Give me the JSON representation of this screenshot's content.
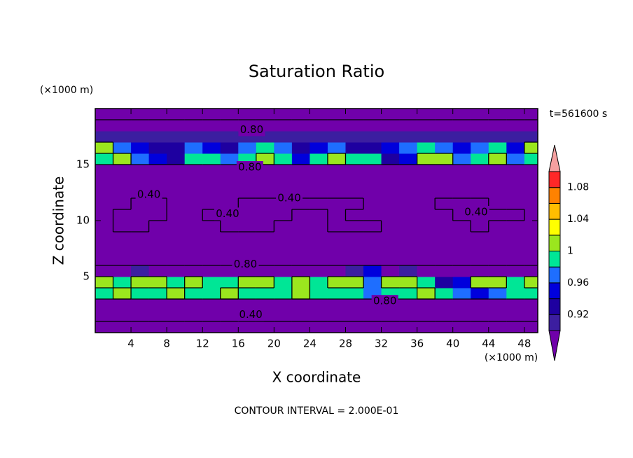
{
  "chart_data": {
    "type": "contour",
    "title": "Saturation Ratio",
    "xlabel": "X coordinate",
    "ylabel": "Z coordinate",
    "x_unit": "(×1000 m)",
    "y_unit": "(×1000 m)",
    "time_label": "t=561600 s",
    "footer": "CONTOUR INTERVAL = 2.000E-01",
    "xlim": [
      0,
      49.5
    ],
    "ylim": [
      0,
      20
    ],
    "xticks": [
      4,
      8,
      12,
      16,
      20,
      24,
      28,
      32,
      36,
      40,
      44,
      48
    ],
    "yticks": [
      5,
      10,
      15
    ],
    "x": [
      1,
      3,
      5,
      7,
      9,
      11,
      13,
      15,
      17,
      19,
      21,
      23,
      25,
      27,
      29,
      31,
      33,
      35,
      37,
      39,
      41,
      43,
      45,
      47,
      49
    ],
    "y": [
      0.5,
      1.5,
      2.5,
      3.5,
      4.5,
      5.5,
      6.5,
      7.5,
      8.5,
      9.5,
      10.5,
      11.5,
      12.5,
      13.5,
      14.5,
      15.5,
      16.5,
      17.5,
      18.5,
      19.5
    ],
    "z": [
      [
        0.3,
        0.3,
        0.3,
        0.3,
        0.3,
        0.3,
        0.3,
        0.3,
        0.3,
        0.3,
        0.3,
        0.3,
        0.3,
        0.3,
        0.3,
        0.3,
        0.3,
        0.3,
        0.3,
        0.3,
        0.3,
        0.3,
        0.3,
        0.3,
        0.3
      ],
      [
        0.55,
        0.55,
        0.55,
        0.55,
        0.55,
        0.55,
        0.55,
        0.55,
        0.55,
        0.55,
        0.55,
        0.55,
        0.55,
        0.55,
        0.55,
        0.55,
        0.55,
        0.55,
        0.55,
        0.55,
        0.55,
        0.55,
        0.55,
        0.55,
        0.55
      ],
      [
        0.78,
        0.78,
        0.78,
        0.78,
        0.78,
        0.78,
        0.78,
        0.78,
        0.78,
        0.78,
        0.78,
        0.78,
        0.78,
        0.78,
        0.78,
        0.78,
        0.78,
        0.78,
        0.78,
        0.78,
        0.78,
        0.78,
        0.78,
        0.78,
        0.78
      ],
      [
        0.99,
        1.01,
        0.99,
        0.99,
        1.01,
        0.99,
        0.99,
        1.01,
        0.99,
        0.99,
        0.99,
        1.01,
        0.99,
        0.99,
        0.99,
        0.97,
        0.99,
        0.99,
        1.01,
        0.99,
        0.97,
        0.95,
        0.97,
        0.99,
        0.99
      ],
      [
        1.01,
        0.99,
        1.01,
        1.01,
        0.99,
        1.01,
        0.99,
        0.99,
        1.01,
        1.01,
        0.99,
        1.01,
        0.99,
        1.01,
        1.01,
        0.97,
        1.01,
        1.01,
        0.99,
        0.93,
        0.95,
        1.01,
        1.01,
        0.99,
        1.01
      ],
      [
        0.86,
        0.86,
        0.91,
        0.86,
        0.86,
        0.86,
        0.86,
        0.86,
        0.86,
        0.86,
        0.86,
        0.86,
        0.86,
        0.86,
        0.91,
        0.95,
        0.86,
        0.91,
        0.86,
        0.86,
        0.86,
        0.86,
        0.86,
        0.86,
        0.86
      ],
      [
        0.7,
        0.7,
        0.7,
        0.7,
        0.7,
        0.7,
        0.7,
        0.7,
        0.7,
        0.7,
        0.7,
        0.7,
        0.7,
        0.7,
        0.7,
        0.7,
        0.7,
        0.7,
        0.7,
        0.7,
        0.7,
        0.7,
        0.7,
        0.7,
        0.7
      ],
      [
        0.6,
        0.6,
        0.6,
        0.6,
        0.6,
        0.6,
        0.6,
        0.6,
        0.6,
        0.6,
        0.6,
        0.6,
        0.6,
        0.6,
        0.6,
        0.6,
        0.6,
        0.6,
        0.6,
        0.6,
        0.6,
        0.6,
        0.6,
        0.6,
        0.6
      ],
      [
        0.5,
        0.5,
        0.5,
        0.5,
        0.5,
        0.5,
        0.5,
        0.5,
        0.5,
        0.5,
        0.5,
        0.5,
        0.5,
        0.5,
        0.5,
        0.5,
        0.5,
        0.5,
        0.5,
        0.5,
        0.5,
        0.5,
        0.5,
        0.5,
        0.5
      ],
      [
        0.45,
        0.38,
        0.38,
        0.45,
        0.45,
        0.45,
        0.45,
        0.38,
        0.38,
        0.38,
        0.45,
        0.45,
        0.45,
        0.38,
        0.38,
        0.38,
        0.45,
        0.45,
        0.45,
        0.45,
        0.45,
        0.38,
        0.45,
        0.45,
        0.45
      ],
      [
        0.45,
        0.38,
        0.38,
        0.38,
        0.45,
        0.45,
        0.38,
        0.38,
        0.38,
        0.38,
        0.38,
        0.45,
        0.45,
        0.38,
        0.45,
        0.45,
        0.45,
        0.45,
        0.45,
        0.45,
        0.38,
        0.38,
        0.38,
        0.38,
        0.45
      ],
      [
        0.45,
        0.45,
        0.38,
        0.38,
        0.45,
        0.45,
        0.45,
        0.45,
        0.38,
        0.38,
        0.38,
        0.38,
        0.38,
        0.38,
        0.38,
        0.45,
        0.45,
        0.45,
        0.45,
        0.38,
        0.38,
        0.38,
        0.45,
        0.45,
        0.45
      ],
      [
        0.52,
        0.52,
        0.52,
        0.52,
        0.52,
        0.52,
        0.52,
        0.52,
        0.52,
        0.52,
        0.52,
        0.52,
        0.52,
        0.52,
        0.52,
        0.52,
        0.52,
        0.52,
        0.52,
        0.52,
        0.52,
        0.52,
        0.52,
        0.52,
        0.52
      ],
      [
        0.6,
        0.6,
        0.6,
        0.6,
        0.6,
        0.6,
        0.6,
        0.6,
        0.6,
        0.6,
        0.6,
        0.6,
        0.6,
        0.6,
        0.6,
        0.6,
        0.6,
        0.6,
        0.6,
        0.6,
        0.6,
        0.6,
        0.6,
        0.6,
        0.6
      ],
      [
        0.75,
        0.75,
        0.75,
        0.75,
        0.75,
        0.75,
        0.75,
        0.75,
        0.75,
        0.75,
        0.75,
        0.75,
        0.75,
        0.75,
        0.75,
        0.75,
        0.75,
        0.75,
        0.75,
        0.75,
        0.75,
        0.75,
        0.75,
        0.75,
        0.75
      ],
      [
        0.99,
        1.01,
        0.97,
        0.95,
        0.93,
        0.99,
        0.99,
        0.97,
        0.99,
        1.01,
        0.99,
        0.95,
        0.99,
        1.01,
        0.99,
        0.99,
        0.93,
        0.95,
        1.01,
        1.01,
        0.97,
        0.99,
        1.01,
        0.97,
        0.99
      ],
      [
        1.01,
        0.97,
        0.95,
        0.93,
        0.93,
        0.97,
        0.95,
        0.93,
        0.97,
        0.99,
        0.97,
        0.93,
        0.95,
        0.97,
        0.93,
        0.93,
        0.95,
        0.97,
        0.99,
        0.97,
        0.95,
        0.97,
        0.99,
        0.95,
        1.01
      ],
      [
        0.91,
        0.91,
        0.91,
        0.91,
        0.91,
        0.91,
        0.91,
        0.91,
        0.91,
        0.91,
        0.91,
        0.91,
        0.91,
        0.91,
        0.91,
        0.91,
        0.91,
        0.91,
        0.91,
        0.91,
        0.91,
        0.91,
        0.91,
        0.91,
        0.91
      ],
      [
        0.82,
        0.82,
        0.82,
        0.82,
        0.82,
        0.82,
        0.82,
        0.82,
        0.82,
        0.82,
        0.82,
        0.82,
        0.82,
        0.82,
        0.82,
        0.82,
        0.82,
        0.82,
        0.82,
        0.82,
        0.82,
        0.82,
        0.82,
        0.82,
        0.82
      ],
      [
        0.76,
        0.76,
        0.76,
        0.76,
        0.76,
        0.76,
        0.76,
        0.76,
        0.76,
        0.76,
        0.76,
        0.76,
        0.76,
        0.76,
        0.76,
        0.76,
        0.76,
        0.76,
        0.76,
        0.76,
        0.76,
        0.76,
        0.76,
        0.76,
        0.76
      ]
    ],
    "contour_lines": [
      0.4,
      0.8,
      1.0
    ],
    "contour_labels": [
      {
        "value": 0.8,
        "label": "0.80",
        "x": 17.5,
        "y": 18.1
      },
      {
        "value": 0.8,
        "label": "0.80",
        "x": 17.3,
        "y": 14.75
      },
      {
        "value": 0.4,
        "label": "0.40",
        "x": 6,
        "y": 12.3
      },
      {
        "value": 0.4,
        "label": "0.40",
        "x": 14.8,
        "y": 10.6
      },
      {
        "value": 0.4,
        "label": "0.40",
        "x": 21.7,
        "y": 12
      },
      {
        "value": 0.4,
        "label": "0.40",
        "x": 42.6,
        "y": 10.75
      },
      {
        "value": 0.8,
        "label": "0.80",
        "x": 16.8,
        "y": 6.1
      },
      {
        "value": 0.8,
        "label": "0.80",
        "x": 32.4,
        "y": 2.8
      },
      {
        "value": 0.4,
        "label": "0.40",
        "x": 17.4,
        "y": 1.6
      }
    ],
    "colorbar": {
      "levels": [
        0.9,
        0.92,
        0.94,
        0.96,
        0.98,
        1.0,
        1.02,
        1.04,
        1.06,
        1.08,
        1.1
      ],
      "colors": [
        "#7000aa",
        "#3c1ea0",
        "#1e00a0",
        "#0000dc",
        "#1e6eff",
        "#00e696",
        "#9be61e",
        "#ffff00",
        "#ffbe00",
        "#ff8200",
        "#ff2828",
        "#f5a0a0"
      ],
      "labels": [
        0.92,
        0.96,
        1,
        1.04,
        1.08
      ]
    }
  }
}
